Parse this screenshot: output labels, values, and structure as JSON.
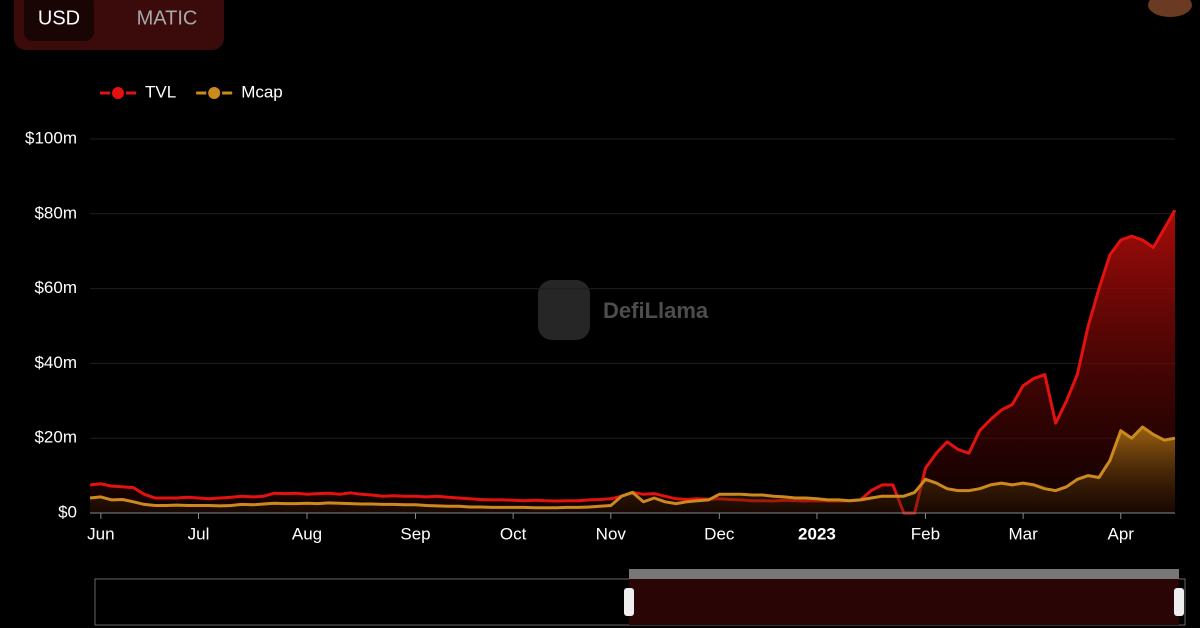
{
  "currency_options": [
    "USD",
    "MATIC"
  ],
  "watermark": "DefiLlama",
  "chart_data": {
    "type": "area",
    "categories": [
      null,
      "Jun",
      null,
      null,
      null,
      null,
      null,
      null,
      null,
      null,
      "Jul",
      null,
      null,
      null,
      null,
      null,
      null,
      null,
      null,
      null,
      "Aug",
      null,
      null,
      null,
      null,
      null,
      null,
      null,
      null,
      null,
      "Sep",
      null,
      null,
      null,
      null,
      null,
      null,
      null,
      null,
      "Oct",
      null,
      null,
      null,
      null,
      null,
      null,
      null,
      null,
      "Nov",
      null,
      null,
      null,
      null,
      null,
      null,
      null,
      null,
      null,
      "Dec",
      null,
      null,
      null,
      null,
      null,
      null,
      null,
      null,
      "2023",
      null,
      null,
      null,
      null,
      null,
      null,
      null,
      null,
      null,
      "Feb",
      null,
      null,
      null,
      null,
      null,
      null,
      null,
      null,
      "Mar",
      null,
      null,
      null,
      null,
      null,
      null,
      null,
      null,
      "Apr",
      null,
      null,
      null,
      null,
      null
    ],
    "series": [
      {
        "name": "TVL",
        "color": "#e3120f",
        "values": [
          7.5,
          7.8,
          7.2,
          7,
          6.8,
          5,
          4,
          4,
          4,
          4.2,
          4,
          3.8,
          4,
          4.2,
          4.5,
          4.3,
          4.5,
          5.3,
          5.2,
          5.3,
          5,
          5.2,
          5.3,
          5,
          5.4,
          5,
          4.8,
          4.5,
          4.6,
          4.5,
          4.5,
          4.3,
          4.5,
          4.2,
          4,
          3.8,
          3.6,
          3.5,
          3.5,
          3.4,
          3.3,
          3.4,
          3.3,
          3.2,
          3.3,
          3.3,
          3.5,
          3.6,
          3.8,
          4.5,
          5.5,
          5,
          5.2,
          4.5,
          3.8,
          3.6,
          3.8,
          3.7,
          3.8,
          3.6,
          3.5,
          3.3,
          3.3,
          3.2,
          3.4,
          3.3,
          3.2,
          3.3,
          3.2,
          3.2,
          3.3,
          3.5,
          6,
          7.5,
          7.5,
          0,
          0,
          12,
          16,
          19,
          17,
          16,
          22,
          25,
          27.5,
          29,
          34,
          36,
          37,
          24,
          30,
          37,
          50,
          60,
          69,
          73,
          74,
          73,
          71,
          76,
          81
        ]
      },
      {
        "name": "Mcap",
        "color": "#cc8a1e",
        "values": [
          4,
          4.3,
          3.5,
          3.6,
          3,
          2.3,
          2,
          2,
          2.1,
          2,
          2,
          2,
          1.9,
          2,
          2.3,
          2.2,
          2.4,
          2.6,
          2.5,
          2.5,
          2.6,
          2.5,
          2.7,
          2.6,
          2.5,
          2.4,
          2.4,
          2.3,
          2.3,
          2.2,
          2.2,
          2,
          1.9,
          1.8,
          1.8,
          1.6,
          1.6,
          1.5,
          1.5,
          1.5,
          1.5,
          1.4,
          1.4,
          1.4,
          1.5,
          1.5,
          1.6,
          1.8,
          2,
          4.5,
          5.5,
          3,
          4,
          3,
          2.5,
          3,
          3.3,
          3.5,
          5,
          5,
          5,
          4.8,
          4.8,
          4.5,
          4.3,
          4,
          4,
          3.8,
          3.5,
          3.5,
          3.3,
          3.5,
          4,
          4.5,
          4.5,
          4.5,
          5.5,
          9,
          8,
          6.5,
          6,
          6,
          6.5,
          7.5,
          8,
          7.5,
          8,
          7.5,
          6.5,
          6,
          7,
          9,
          10,
          9.5,
          14,
          22,
          20,
          23,
          21,
          19.5,
          20
        ]
      }
    ],
    "ylim": [
      0,
      100
    ],
    "yticks": [
      {
        "value": 0,
        "label": "$0"
      },
      {
        "value": 20,
        "label": "$20m"
      },
      {
        "value": 40,
        "label": "$40m"
      },
      {
        "value": 60,
        "label": "$60m"
      },
      {
        "value": 80,
        "label": "$80m"
      },
      {
        "value": 100,
        "label": "$100m"
      }
    ],
    "grid": true,
    "legend": "top-left"
  }
}
